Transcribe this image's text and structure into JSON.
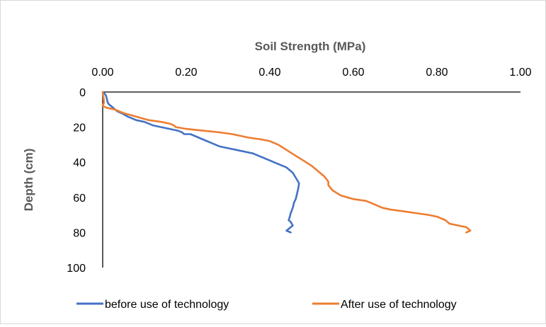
{
  "chart_data": {
    "type": "line",
    "title": "",
    "xlabel": "Soil Strength (MPa)",
    "ylabel": "Depth (cm)",
    "x_axis_position": "top",
    "y_axis_reversed": true,
    "xlim": [
      0,
      1
    ],
    "ylim": [
      0,
      100
    ],
    "x_ticks": [
      "0.00",
      "0.20",
      "0.40",
      "0.60",
      "0.80",
      "1.00"
    ],
    "y_ticks": [
      "0",
      "20",
      "40",
      "60",
      "80",
      "100"
    ],
    "grid": false,
    "legend_position": "bottom",
    "series": [
      {
        "name": "before use of technology",
        "color": "#4472c4",
        "points": [
          [
            0.0,
            0
          ],
          [
            0.005,
            1
          ],
          [
            0.008,
            2
          ],
          [
            0.01,
            4
          ],
          [
            0.012,
            6
          ],
          [
            0.015,
            7
          ],
          [
            0.02,
            8
          ],
          [
            0.025,
            9
          ],
          [
            0.03,
            10
          ],
          [
            0.035,
            11
          ],
          [
            0.045,
            12
          ],
          [
            0.06,
            14
          ],
          [
            0.08,
            16
          ],
          [
            0.1,
            17
          ],
          [
            0.12,
            19
          ],
          [
            0.14,
            20
          ],
          [
            0.16,
            21
          ],
          [
            0.18,
            22
          ],
          [
            0.19,
            23
          ],
          [
            0.195,
            24
          ],
          [
            0.21,
            24
          ],
          [
            0.22,
            25
          ],
          [
            0.24,
            27
          ],
          [
            0.26,
            29
          ],
          [
            0.28,
            31
          ],
          [
            0.3,
            32
          ],
          [
            0.32,
            33
          ],
          [
            0.34,
            34
          ],
          [
            0.36,
            35
          ],
          [
            0.38,
            37
          ],
          [
            0.4,
            39
          ],
          [
            0.42,
            41
          ],
          [
            0.44,
            43
          ],
          [
            0.455,
            46
          ],
          [
            0.46,
            48
          ],
          [
            0.465,
            50
          ],
          [
            0.47,
            52
          ],
          [
            0.468,
            55
          ],
          [
            0.465,
            58
          ],
          [
            0.462,
            61
          ],
          [
            0.458,
            63
          ],
          [
            0.455,
            66
          ],
          [
            0.45,
            69
          ],
          [
            0.448,
            71
          ],
          [
            0.445,
            73
          ],
          [
            0.45,
            74
          ],
          [
            0.455,
            76
          ],
          [
            0.45,
            77
          ],
          [
            0.445,
            78
          ],
          [
            0.44,
            79
          ],
          [
            0.45,
            80
          ]
        ]
      },
      {
        "name": "After use of technology",
        "color": "#ed7d31",
        "points": [
          [
            0.0,
            0
          ],
          [
            0.002,
            3
          ],
          [
            0.003,
            6
          ],
          [
            0.0,
            8
          ],
          [
            0.01,
            9
          ],
          [
            0.03,
            10
          ],
          [
            0.05,
            12
          ],
          [
            0.08,
            14
          ],
          [
            0.11,
            16
          ],
          [
            0.14,
            17
          ],
          [
            0.16,
            18
          ],
          [
            0.17,
            19
          ],
          [
            0.175,
            20
          ],
          [
            0.2,
            21
          ],
          [
            0.24,
            22
          ],
          [
            0.28,
            23
          ],
          [
            0.31,
            24
          ],
          [
            0.33,
            25
          ],
          [
            0.35,
            26
          ],
          [
            0.38,
            27
          ],
          [
            0.4,
            28
          ],
          [
            0.42,
            30
          ],
          [
            0.44,
            33
          ],
          [
            0.46,
            36
          ],
          [
            0.48,
            39
          ],
          [
            0.5,
            42
          ],
          [
            0.51,
            44
          ],
          [
            0.52,
            46
          ],
          [
            0.53,
            48
          ],
          [
            0.54,
            51
          ],
          [
            0.54,
            53
          ],
          [
            0.55,
            56
          ],
          [
            0.57,
            59
          ],
          [
            0.6,
            61
          ],
          [
            0.63,
            62
          ],
          [
            0.64,
            63
          ],
          [
            0.65,
            64
          ],
          [
            0.66,
            65
          ],
          [
            0.67,
            66
          ],
          [
            0.69,
            67
          ],
          [
            0.72,
            68
          ],
          [
            0.75,
            69
          ],
          [
            0.78,
            70
          ],
          [
            0.8,
            71
          ],
          [
            0.82,
            73
          ],
          [
            0.83,
            75
          ],
          [
            0.85,
            76
          ],
          [
            0.87,
            77
          ],
          [
            0.875,
            78
          ],
          [
            0.88,
            79
          ],
          [
            0.87,
            80
          ]
        ]
      }
    ]
  }
}
